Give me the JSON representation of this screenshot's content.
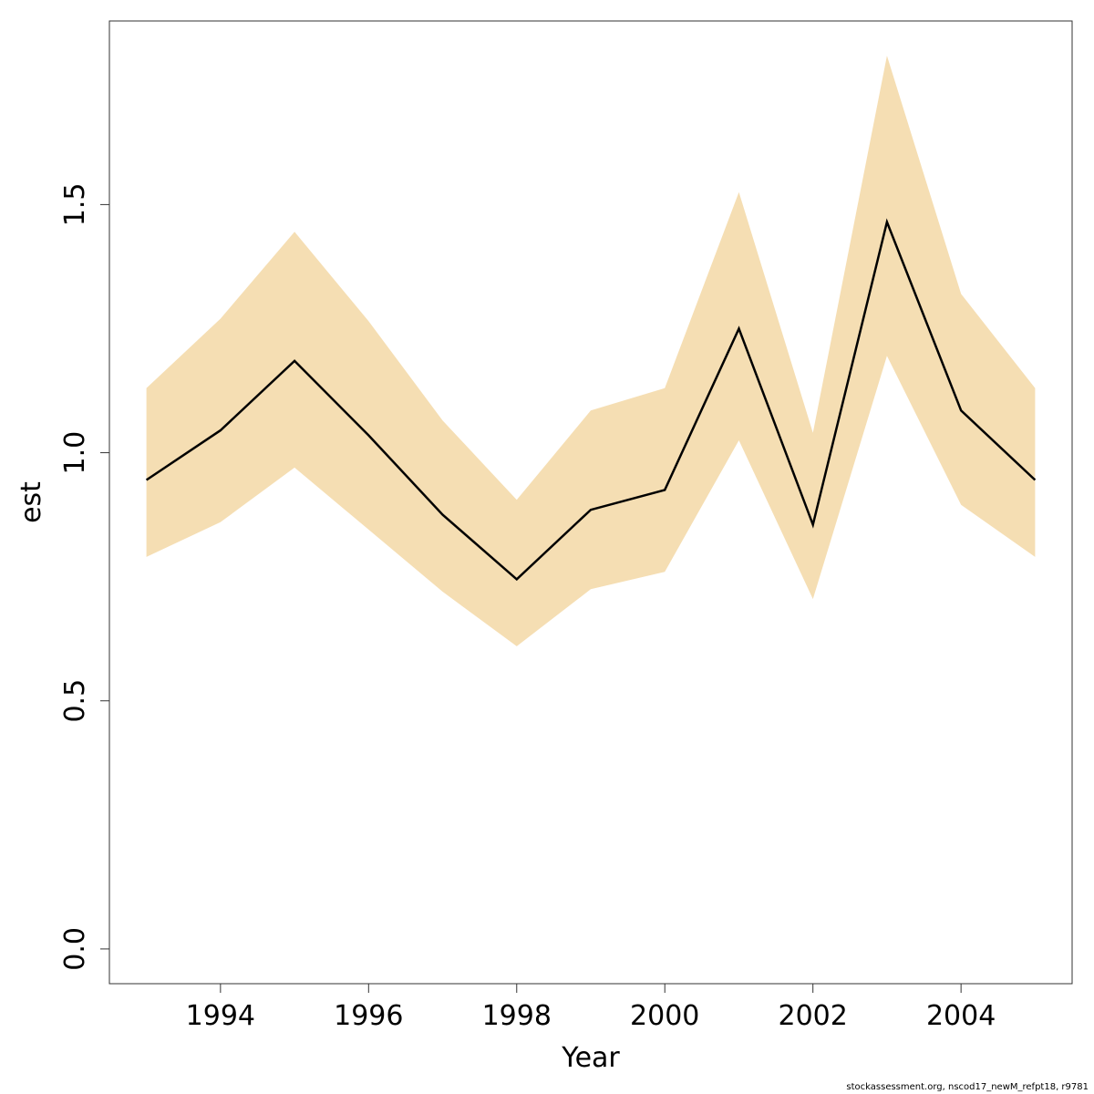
{
  "chart_data": {
    "type": "line",
    "xlabel": "Year",
    "ylabel": "est",
    "xlim": [
      1992.5,
      2005.5
    ],
    "ylim": [
      -0.07,
      1.87
    ],
    "x_ticks": [
      1994,
      1996,
      1998,
      2000,
      2002,
      2004
    ],
    "x_tick_labels": [
      "1994",
      "1996",
      "1998",
      "2000",
      "2002",
      "2004"
    ],
    "y_ticks": [
      0.0,
      0.5,
      1.0,
      1.5
    ],
    "y_tick_labels": [
      "0.0",
      "0.5",
      "1.0",
      "1.5"
    ],
    "grid": false,
    "x": [
      1993,
      1994,
      1995,
      1996,
      1997,
      1998,
      1999,
      2000,
      2001,
      2002,
      2003,
      2004,
      2005
    ],
    "series": [
      {
        "values": [
          0.945,
          1.045,
          1.185,
          1.035,
          0.875,
          0.745,
          0.885,
          0.925,
          1.25,
          0.855,
          1.465,
          1.085,
          0.945
        ],
        "color": "#000000"
      }
    ],
    "band": {
      "lower": [
        0.79,
        0.86,
        0.97,
        0.845,
        0.72,
        0.61,
        0.725,
        0.76,
        1.025,
        0.705,
        1.195,
        0.895,
        0.79
      ],
      "upper": [
        1.13,
        1.27,
        1.445,
        1.265,
        1.065,
        0.905,
        1.085,
        1.13,
        1.525,
        1.04,
        1.8,
        1.32,
        1.13
      ],
      "color": "#f5deb3"
    }
  },
  "footnote": "stockassessment.org, nscod17_newM_refpt18, r9781"
}
